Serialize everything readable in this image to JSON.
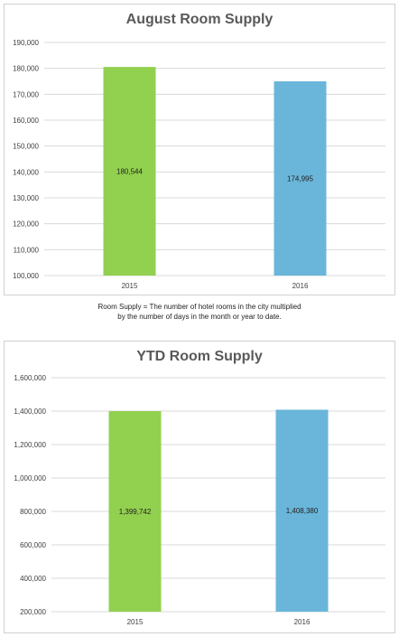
{
  "colors": {
    "series_2015": "#92d050",
    "series_2016": "#6ab6da",
    "gridline": "#d9d9d9",
    "tick_text": "#404040"
  },
  "caption": {
    "line1": "Room Supply = The number of hotel rooms in the city multiplied",
    "line2": "by the number of days in the month or year to date."
  },
  "chart_data": [
    {
      "type": "bar",
      "title": "August Room Supply",
      "categories": [
        "2015",
        "2016"
      ],
      "values": [
        180544,
        174995
      ],
      "data_labels": [
        "180,544",
        "174,995"
      ],
      "xlabel": "",
      "ylabel": "",
      "ylim": [
        100000,
        190000
      ],
      "yticks": [
        100000,
        110000,
        120000,
        130000,
        140000,
        150000,
        160000,
        170000,
        180000,
        190000
      ],
      "ytick_labels": [
        "100,000",
        "110,000",
        "120,000",
        "130,000",
        "140,000",
        "150,000",
        "160,000",
        "170,000",
        "180,000",
        "190,000"
      ],
      "grid": true,
      "legend": "none"
    },
    {
      "type": "bar",
      "title": "YTD Room Supply",
      "categories": [
        "2015",
        "2016"
      ],
      "values": [
        1399742,
        1408380
      ],
      "data_labels": [
        "1,399,742",
        "1,408,380"
      ],
      "xlabel": "",
      "ylabel": "",
      "ylim": [
        200000,
        1600000
      ],
      "yticks": [
        200000,
        400000,
        600000,
        800000,
        1000000,
        1200000,
        1400000,
        1600000
      ],
      "ytick_labels": [
        "200,000",
        "400,000",
        "600,000",
        "800,000",
        "1,000,000",
        "1,200,000",
        "1,400,000",
        "1,600,000"
      ],
      "grid": true,
      "legend": "none"
    }
  ]
}
